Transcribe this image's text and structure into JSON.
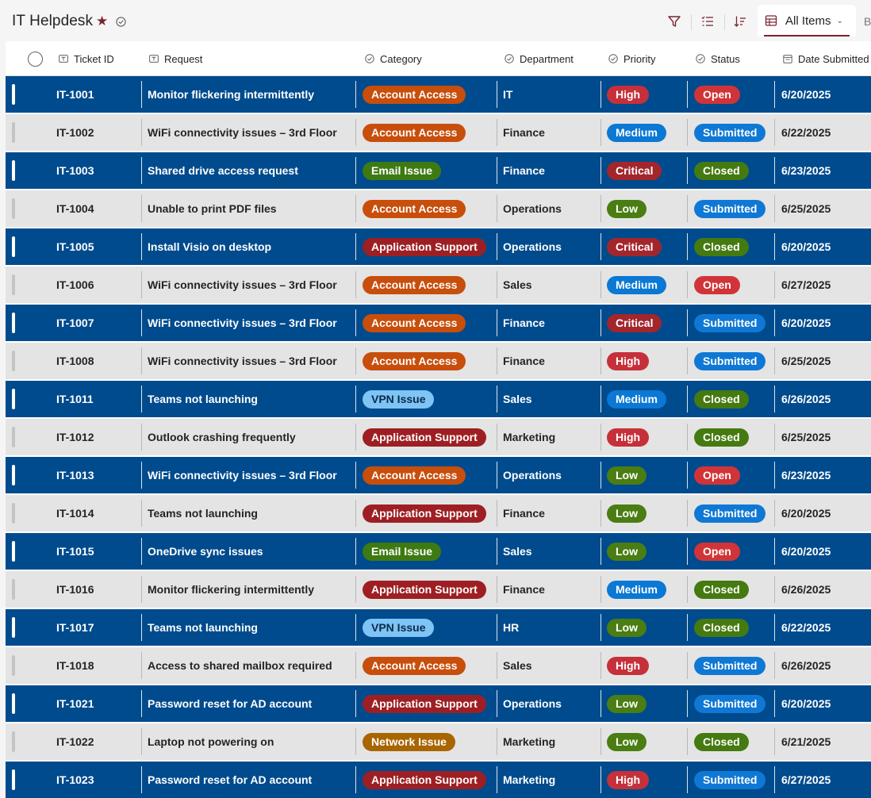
{
  "app": {
    "title": "IT Helpdesk"
  },
  "toolbar": {
    "view_label": "All Items",
    "next_tab_label": "B"
  },
  "columns": {
    "ticket_id": "Ticket ID",
    "request": "Request",
    "category": "Category",
    "department": "Department",
    "priority": "Priority",
    "status": "Status",
    "date_submitted": "Date Submitted"
  },
  "colors": {
    "row_dark": "#004b8d",
    "row_light": "#e4e4e4",
    "Account Access": "#c84e0c",
    "Email Issue": "#3e7a12",
    "Application Support": "#9e1f23",
    "VPN Issue": "#7ec4f5",
    "Network Issue": "#a86500",
    "High": "#c6303a",
    "Medium": "#0a78d4",
    "Critical": "#a3262d",
    "Low": "#4a7d12",
    "Open": "#d13438",
    "Submitted": "#0f78d4",
    "Closed": "#457a10"
  },
  "icons": {
    "filter": "filter-icon",
    "list": "list-icon",
    "sort": "sort-icon",
    "view": "grid-view-icon",
    "favorite": "star-icon",
    "verified": "check-circle-icon"
  },
  "rows": [
    {
      "id": "IT-1001",
      "request": "Monitor flickering intermittently",
      "category": "Account Access",
      "department": "IT",
      "priority": "High",
      "status": "Open",
      "date": "6/20/2025"
    },
    {
      "id": "IT-1002",
      "request": "WiFi connectivity issues – 3rd Floor",
      "category": "Account Access",
      "department": "Finance",
      "priority": "Medium",
      "status": "Submitted",
      "date": "6/22/2025"
    },
    {
      "id": "IT-1003",
      "request": "Shared drive access request",
      "category": "Email Issue",
      "department": "Finance",
      "priority": "Critical",
      "status": "Closed",
      "date": "6/23/2025"
    },
    {
      "id": "IT-1004",
      "request": "Unable to print PDF files",
      "category": "Account Access",
      "department": "Operations",
      "priority": "Low",
      "status": "Submitted",
      "date": "6/25/2025"
    },
    {
      "id": "IT-1005",
      "request": "Install Visio on desktop",
      "category": "Application Support",
      "department": "Operations",
      "priority": "Critical",
      "status": "Closed",
      "date": "6/20/2025"
    },
    {
      "id": "IT-1006",
      "request": "WiFi connectivity issues – 3rd Floor",
      "category": "Account Access",
      "department": "Sales",
      "priority": "Medium",
      "status": "Open",
      "date": "6/27/2025"
    },
    {
      "id": "IT-1007",
      "request": "WiFi connectivity issues – 3rd Floor",
      "category": "Account Access",
      "department": "Finance",
      "priority": "Critical",
      "status": "Submitted",
      "date": "6/20/2025"
    },
    {
      "id": "IT-1008",
      "request": "WiFi connectivity issues – 3rd Floor",
      "category": "Account Access",
      "department": "Finance",
      "priority": "High",
      "status": "Submitted",
      "date": "6/25/2025"
    },
    {
      "id": "IT-1011",
      "request": "Teams not launching",
      "category": "VPN Issue",
      "department": "Sales",
      "priority": "Medium",
      "status": "Closed",
      "date": "6/26/2025"
    },
    {
      "id": "IT-1012",
      "request": "Outlook crashing frequently",
      "category": "Application Support",
      "department": "Marketing",
      "priority": "High",
      "status": "Closed",
      "date": "6/25/2025"
    },
    {
      "id": "IT-1013",
      "request": "WiFi connectivity issues – 3rd Floor",
      "category": "Account Access",
      "department": "Operations",
      "priority": "Low",
      "status": "Open",
      "date": "6/23/2025"
    },
    {
      "id": "IT-1014",
      "request": "Teams not launching",
      "category": "Application Support",
      "department": "Finance",
      "priority": "Low",
      "status": "Submitted",
      "date": "6/20/2025"
    },
    {
      "id": "IT-1015",
      "request": "OneDrive sync issues",
      "category": "Email Issue",
      "department": "Sales",
      "priority": "Low",
      "status": "Open",
      "date": "6/20/2025"
    },
    {
      "id": "IT-1016",
      "request": "Monitor flickering intermittently",
      "category": "Application Support",
      "department": "Finance",
      "priority": "Medium",
      "status": "Closed",
      "date": "6/26/2025"
    },
    {
      "id": "IT-1017",
      "request": "Teams not launching",
      "category": "VPN Issue",
      "department": "HR",
      "priority": "Low",
      "status": "Closed",
      "date": "6/22/2025"
    },
    {
      "id": "IT-1018",
      "request": "Access to shared mailbox required",
      "category": "Account Access",
      "department": "Sales",
      "priority": "High",
      "status": "Submitted",
      "date": "6/26/2025"
    },
    {
      "id": "IT-1021",
      "request": "Password reset for AD account",
      "category": "Application Support",
      "department": "Operations",
      "priority": "Low",
      "status": "Submitted",
      "date": "6/20/2025"
    },
    {
      "id": "IT-1022",
      "request": "Laptop not powering on",
      "category": "Network Issue",
      "department": "Marketing",
      "priority": "Low",
      "status": "Closed",
      "date": "6/21/2025"
    },
    {
      "id": "IT-1023",
      "request": "Password reset for AD account",
      "category": "Application Support",
      "department": "Marketing",
      "priority": "High",
      "status": "Submitted",
      "date": "6/27/2025"
    }
  ]
}
